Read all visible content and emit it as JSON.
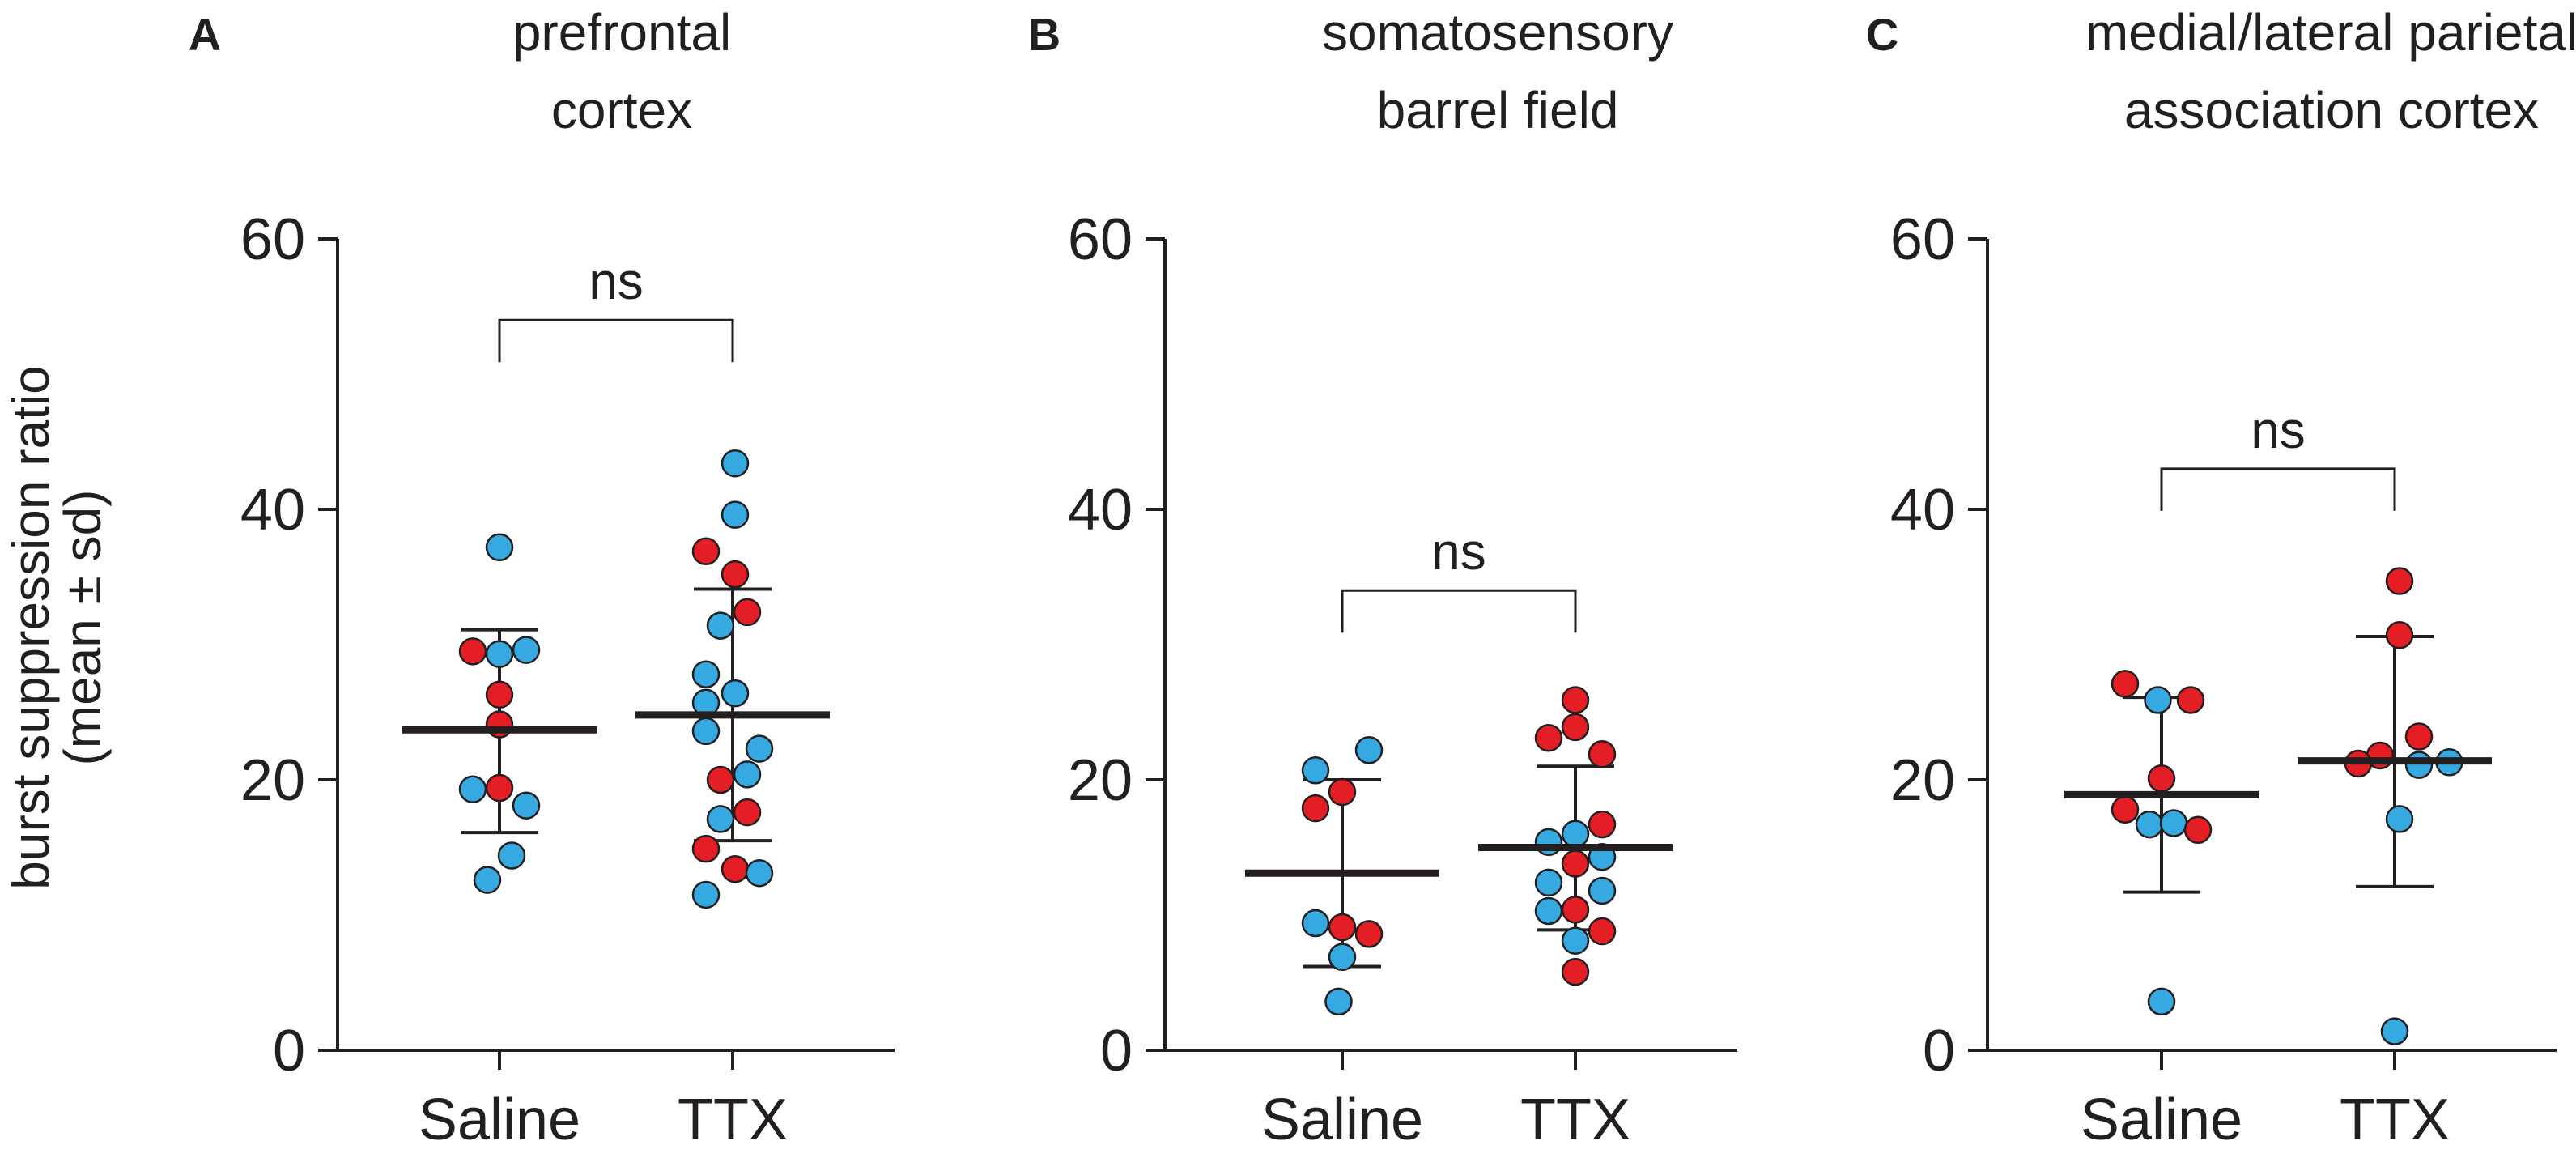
{
  "figure": {
    "ylabel_line1": "burst suppression ratio",
    "ylabel_line2": "(mean ± sd)"
  },
  "colors": {
    "blue": "#35a9e0",
    "red": "#e31e24",
    "stroke": "#231f20"
  },
  "chart_data": [
    {
      "type": "scatter",
      "panel": "A",
      "title_lines": [
        "prefrontal",
        "cortex"
      ],
      "categories": [
        "Saline",
        "TTX"
      ],
      "ylim": [
        0,
        60
      ],
      "yticks": [
        0,
        20,
        40,
        60
      ],
      "ylabel": "burst suppression ratio (mean ± sd)",
      "significance": {
        "label": "ns",
        "y": 54
      },
      "groups": [
        {
          "name": "Saline",
          "mean": 23.7,
          "sd_low": 16.1,
          "sd_high": 31.1,
          "points": [
            {
              "y": 37.2,
              "c": "blue",
              "dx": 0
            },
            {
              "y": 29.5,
              "c": "red",
              "dx": -0.22
            },
            {
              "y": 29.3,
              "c": "blue",
              "dx": 0
            },
            {
              "y": 29.6,
              "c": "blue",
              "dx": 0.22
            },
            {
              "y": 26.3,
              "c": "red",
              "dx": 0
            },
            {
              "y": 24.1,
              "c": "red",
              "dx": 0
            },
            {
              "y": 19.3,
              "c": "blue",
              "dx": -0.22
            },
            {
              "y": 19.4,
              "c": "red",
              "dx": 0
            },
            {
              "y": 18.1,
              "c": "blue",
              "dx": 0.22
            },
            {
              "y": 14.4,
              "c": "blue",
              "dx": 0.1
            },
            {
              "y": 12.6,
              "c": "blue",
              "dx": -0.1
            }
          ]
        },
        {
          "name": "TTX",
          "mean": 24.8,
          "sd_low": 15.5,
          "sd_high": 34.1,
          "points": [
            {
              "y": 43.4,
              "c": "blue",
              "dx": 0.02
            },
            {
              "y": 39.6,
              "c": "blue",
              "dx": 0.02
            },
            {
              "y": 36.9,
              "c": "red",
              "dx": -0.22
            },
            {
              "y": 35.2,
              "c": "red",
              "dx": 0.02
            },
            {
              "y": 32.4,
              "c": "red",
              "dx": 0.12
            },
            {
              "y": 31.4,
              "c": "blue",
              "dx": -0.1
            },
            {
              "y": 27.8,
              "c": "blue",
              "dx": -0.22
            },
            {
              "y": 26.4,
              "c": "blue",
              "dx": 0.02
            },
            {
              "y": 25.7,
              "c": "blue",
              "dx": -0.22
            },
            {
              "y": 23.6,
              "c": "blue",
              "dx": -0.22
            },
            {
              "y": 22.3,
              "c": "blue",
              "dx": 0.22
            },
            {
              "y": 20.4,
              "c": "blue",
              "dx": 0.12
            },
            {
              "y": 20.0,
              "c": "red",
              "dx": -0.1
            },
            {
              "y": 17.6,
              "c": "red",
              "dx": 0.12
            },
            {
              "y": 17.1,
              "c": "blue",
              "dx": -0.1
            },
            {
              "y": 14.9,
              "c": "red",
              "dx": -0.22
            },
            {
              "y": 13.4,
              "c": "red",
              "dx": 0.02
            },
            {
              "y": 13.1,
              "c": "blue",
              "dx": 0.22
            },
            {
              "y": 11.5,
              "c": "blue",
              "dx": -0.22
            }
          ]
        }
      ]
    },
    {
      "type": "scatter",
      "panel": "B",
      "title_lines": [
        "somatosensory",
        "barrel field"
      ],
      "categories": [
        "Saline",
        "TTX"
      ],
      "ylim": [
        0,
        60
      ],
      "yticks": [
        0,
        20,
        40,
        60
      ],
      "ylabel": "burst suppression ratio (mean ± sd)",
      "significance": {
        "label": "ns",
        "y": 34
      },
      "groups": [
        {
          "name": "Saline",
          "mean": 13.1,
          "sd_low": 6.2,
          "sd_high": 20.0,
          "points": [
            {
              "y": 22.2,
              "c": "blue",
              "dx": 0.22
            },
            {
              "y": 20.7,
              "c": "blue",
              "dx": -0.22
            },
            {
              "y": 19.1,
              "c": "red",
              "dx": 0
            },
            {
              "y": 17.9,
              "c": "red",
              "dx": -0.22
            },
            {
              "y": 9.4,
              "c": "blue",
              "dx": -0.22
            },
            {
              "y": 9.1,
              "c": "red",
              "dx": 0
            },
            {
              "y": 8.6,
              "c": "red",
              "dx": 0.22
            },
            {
              "y": 6.9,
              "c": "blue",
              "dx": 0
            },
            {
              "y": 3.6,
              "c": "blue",
              "dx": -0.03
            }
          ]
        },
        {
          "name": "TTX",
          "mean": 15.0,
          "sd_low": 8.9,
          "sd_high": 21.0,
          "points": [
            {
              "y": 25.9,
              "c": "red",
              "dx": 0
            },
            {
              "y": 23.9,
              "c": "red",
              "dx": 0
            },
            {
              "y": 23.1,
              "c": "red",
              "dx": -0.22
            },
            {
              "y": 21.9,
              "c": "red",
              "dx": 0.22
            },
            {
              "y": 16.7,
              "c": "red",
              "dx": 0.22
            },
            {
              "y": 16.0,
              "c": "blue",
              "dx": 0
            },
            {
              "y": 15.4,
              "c": "blue",
              "dx": -0.22
            },
            {
              "y": 14.3,
              "c": "blue",
              "dx": 0.22
            },
            {
              "y": 13.8,
              "c": "red",
              "dx": 0
            },
            {
              "y": 12.4,
              "c": "blue",
              "dx": -0.22
            },
            {
              "y": 11.8,
              "c": "blue",
              "dx": 0.22
            },
            {
              "y": 10.4,
              "c": "red",
              "dx": 0
            },
            {
              "y": 10.3,
              "c": "blue",
              "dx": -0.22
            },
            {
              "y": 8.8,
              "c": "red",
              "dx": 0.22
            },
            {
              "y": 8.1,
              "c": "blue",
              "dx": 0
            },
            {
              "y": 5.8,
              "c": "red",
              "dx": 0
            }
          ]
        }
      ]
    },
    {
      "type": "scatter",
      "panel": "C",
      "title_lines": [
        "medial/lateral parietal",
        "association cortex"
      ],
      "categories": [
        "Saline",
        "TTX"
      ],
      "ylim": [
        0,
        60
      ],
      "yticks": [
        0,
        20,
        40,
        60
      ],
      "ylabel": "burst suppression ratio (mean ± sd)",
      "significance": {
        "label": "ns",
        "y": 43
      },
      "groups": [
        {
          "name": "Saline",
          "mean": 18.9,
          "sd_low": 11.7,
          "sd_high": 26.1,
          "points": [
            {
              "y": 27.1,
              "c": "red",
              "dx": -0.3
            },
            {
              "y": 25.9,
              "c": "blue",
              "dx": -0.03
            },
            {
              "y": 25.9,
              "c": "red",
              "dx": 0.24
            },
            {
              "y": 20.1,
              "c": "red",
              "dx": 0
            },
            {
              "y": 17.8,
              "c": "red",
              "dx": -0.3
            },
            {
              "y": 16.7,
              "c": "blue",
              "dx": -0.1
            },
            {
              "y": 16.8,
              "c": "blue",
              "dx": 0.1
            },
            {
              "y": 16.3,
              "c": "red",
              "dx": 0.3
            },
            {
              "y": 3.6,
              "c": "blue",
              "dx": 0
            }
          ]
        },
        {
          "name": "TTX",
          "mean": 21.4,
          "sd_low": 12.1,
          "sd_high": 30.6,
          "points": [
            {
              "y": 34.7,
              "c": "red",
              "dx": 0.04
            },
            {
              "y": 30.7,
              "c": "red",
              "dx": 0.04
            },
            {
              "y": 23.2,
              "c": "red",
              "dx": 0.2
            },
            {
              "y": 21.8,
              "c": "red",
              "dx": -0.12
            },
            {
              "y": 21.3,
              "c": "blue",
              "dx": 0.45
            },
            {
              "y": 21.2,
              "c": "red",
              "dx": -0.3
            },
            {
              "y": 21.1,
              "c": "blue",
              "dx": 0.2
            },
            {
              "y": 17.1,
              "c": "blue",
              "dx": 0.04
            },
            {
              "y": 1.4,
              "c": "blue",
              "dx": 0
            }
          ]
        }
      ]
    }
  ]
}
